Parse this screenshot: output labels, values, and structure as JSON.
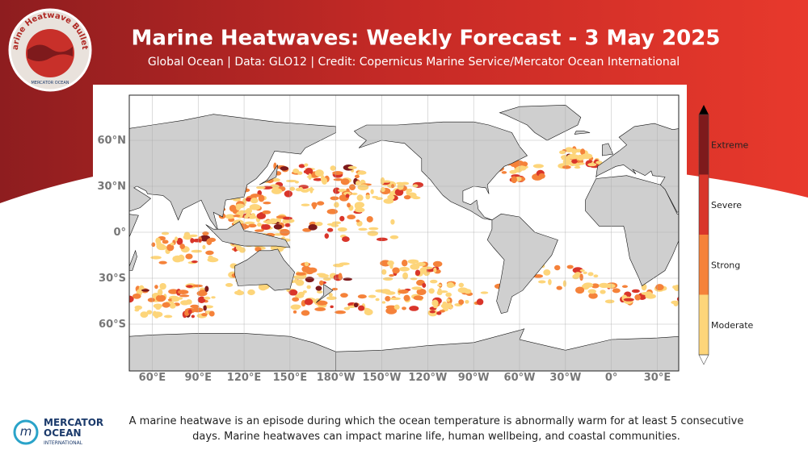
{
  "header": {
    "title": "Marine Heatwaves: Weekly Forecast - 3 May 2025",
    "subtitle": "Global Ocean | Data: GLO12 | Credit: Copernicus Marine Service/Mercator Ocean International",
    "badge": {
      "text": "Marine Heatwave Bulletin",
      "logo": "MERCATOR OCEAN"
    }
  },
  "map": {
    "lat_labels": [
      "60°N",
      "30°N",
      "0°",
      "30°S",
      "60°S"
    ],
    "lon_labels": [
      "60°E",
      "90°E",
      "120°E",
      "150°E",
      "180°W",
      "150°W",
      "120°W",
      "90°W",
      "60°W",
      "30°W",
      "0°",
      "30°E"
    ],
    "legend": [
      {
        "label": "Moderate",
        "color": "#fdd57a"
      },
      {
        "label": "Strong",
        "color": "#f5823a"
      },
      {
        "label": "Severe",
        "color": "#d9352a"
      },
      {
        "label": "Extreme",
        "color": "#7e1a1c"
      }
    ]
  },
  "footer": {
    "text": "A marine heatwave is an episode during which the ocean temperature is abnormally warm for at least 5 consecutive days. Marine heatwaves can impact marine life, human wellbeing, and coastal communities.",
    "logo": {
      "lines": [
        "MERCATOR",
        "OCEAN"
      ],
      "subtitle": "INTERNATIONAL"
    }
  }
}
